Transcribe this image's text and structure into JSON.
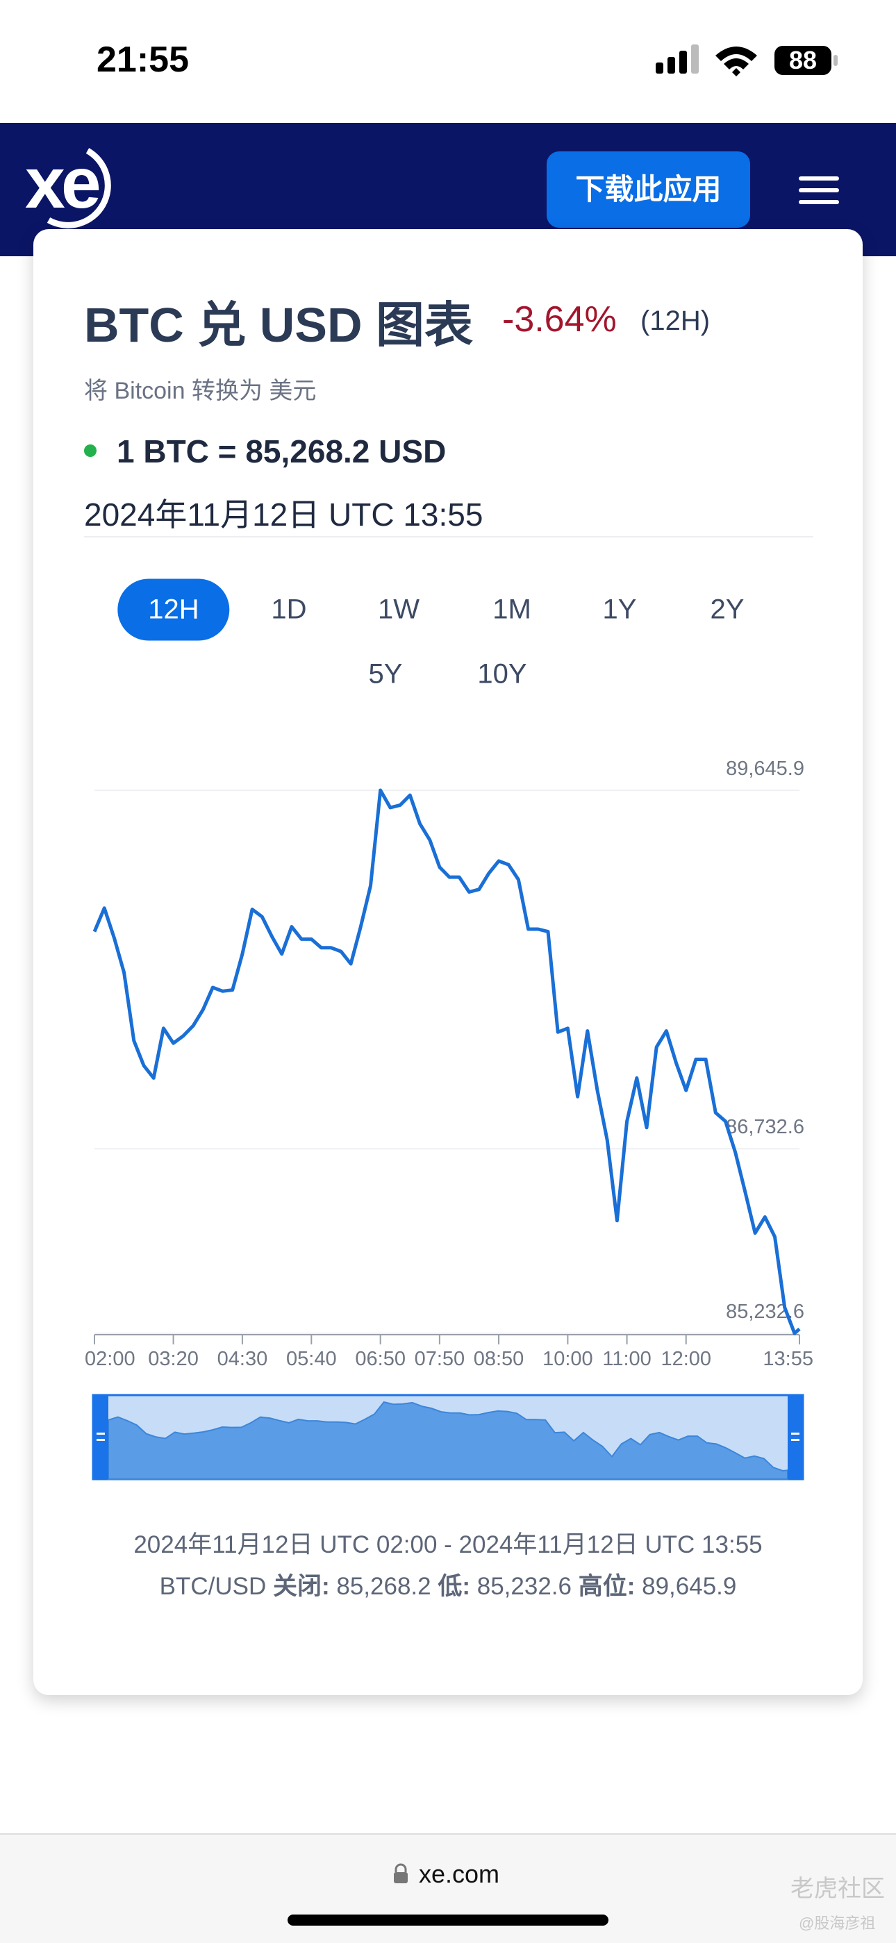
{
  "status": {
    "time": "21:55",
    "battery": "88"
  },
  "header": {
    "logo": "xe",
    "button": "下载此应用"
  },
  "card": {
    "title": "BTC 兑 USD 图表",
    "change": "-3.64%",
    "period": "(12H)",
    "subtitle": "将 Bitcoin 转换为 美元",
    "rate": "1 BTC = 85,268.2 USD",
    "date": "2024年11月12日 UTC 13:55"
  },
  "tabs": {
    "items": [
      "12H",
      "1D",
      "1W",
      "1M",
      "1Y",
      "2Y",
      "5Y",
      "10Y"
    ],
    "active": 0
  },
  "chart_data": {
    "type": "line",
    "color": "#1a6fd6",
    "x": [
      120,
      130,
      140,
      150,
      160,
      170,
      180,
      190,
      200,
      210,
      220,
      230,
      240,
      250,
      260,
      270,
      280,
      290,
      300,
      310,
      320,
      330,
      340,
      350,
      360,
      370,
      380,
      390,
      400,
      410,
      420,
      430,
      440,
      450,
      460,
      470,
      480,
      490,
      500,
      510,
      520,
      530,
      540,
      550,
      560,
      570,
      580,
      590,
      600,
      610,
      620,
      630,
      640,
      650,
      660,
      670,
      680,
      690,
      700,
      710,
      720,
      730,
      740,
      750,
      760,
      770,
      780,
      790,
      800,
      810,
      820,
      830,
      835
    ],
    "values": [
      88497,
      88688,
      88446,
      88164,
      87610,
      87408,
      87307,
      87711,
      87590,
      87650,
      87731,
      87862,
      88043,
      88013,
      88023,
      88315,
      88678,
      88618,
      88457,
      88315,
      88537,
      88436,
      88436,
      88366,
      88366,
      88336,
      88235,
      88537,
      88870,
      89645.9,
      89505,
      89525,
      89606,
      89374,
      89243,
      89021,
      88940,
      88940,
      88819,
      88840,
      88971,
      89071,
      89041,
      88920,
      88517,
      88517,
      88497,
      87680,
      87711,
      87156,
      87690,
      87207,
      86803,
      86148,
      86955,
      87307,
      86904,
      87559,
      87690,
      87428,
      87207,
      87459,
      87459,
      87025,
      86955,
      86703,
      86380,
      86047,
      86178,
      86017,
      85443,
      85232.6,
      85268.2
    ],
    "xlim": [
      120,
      835
    ],
    "xticks": [
      {
        "value": 120,
        "label": "02:00"
      },
      {
        "value": 200,
        "label": "03:20"
      },
      {
        "value": 270,
        "label": "04:30"
      },
      {
        "value": 340,
        "label": "05:40"
      },
      {
        "value": 410,
        "label": "06:50"
      },
      {
        "value": 470,
        "label": "07:50"
      },
      {
        "value": 530,
        "label": "08:50"
      },
      {
        "value": 600,
        "label": "10:00"
      },
      {
        "value": 660,
        "label": "11:00"
      },
      {
        "value": 720,
        "label": "12:00"
      },
      {
        "value": 835,
        "label": "13:55"
      }
    ],
    "ylim": [
      85232.6,
      89645.9
    ],
    "yticks": [
      {
        "value": 85232.6,
        "label": "85,232.6"
      },
      {
        "value": 86732.6,
        "label": "86,732.6"
      },
      {
        "value": 89645.9,
        "label": "89,645.9"
      }
    ],
    "grid": true
  },
  "footer": {
    "range": "2024年11月12日 UTC 02:00 - 2024年11月12日 UTC 13:55",
    "pair": "BTC/USD",
    "close_label": "关闭:",
    "close": "85,268.2",
    "low_label": "低:",
    "low": "85,232.6",
    "high_label": "高位:",
    "high": "89,645.9"
  },
  "browser": {
    "url": "xe.com"
  },
  "watermark": {
    "brand": "老虎社区",
    "author": "@股海彦祖"
  }
}
